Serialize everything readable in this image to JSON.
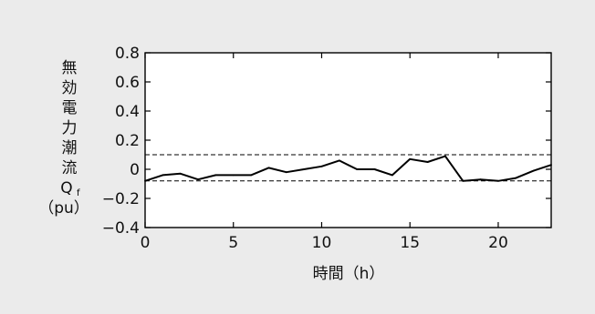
{
  "chart_data": {
    "type": "line",
    "ylabel_chars": [
      "無",
      "効",
      "電",
      "力",
      "潮",
      "流"
    ],
    "ylabel_symbol": "Q",
    "ylabel_subscript": "f",
    "ylabel_unit": "（pu）",
    "xlabel": "時間（h）",
    "xlim": [
      0,
      23
    ],
    "ylim": [
      -0.4,
      0.8
    ],
    "xticks": [
      0,
      5,
      10,
      15,
      20
    ],
    "xtick_labels": [
      "0",
      "5",
      "10",
      "15",
      "20"
    ],
    "yticks": [
      0.8,
      0.6,
      0.4,
      0.2,
      0,
      -0.2,
      -0.4
    ],
    "ytick_labels": [
      "0.8",
      "0.6",
      "0.4",
      "0.2",
      "0",
      "−0.2",
      "−0.4"
    ],
    "grid": false,
    "series": [
      {
        "x": [
          0,
          1,
          2,
          3,
          4,
          5,
          6,
          7,
          8,
          9,
          10,
          11,
          12,
          13,
          14,
          15,
          16,
          17,
          18,
          19,
          20,
          21,
          22,
          23
        ],
        "y": [
          -0.08,
          -0.04,
          -0.03,
          -0.07,
          -0.04,
          -0.04,
          -0.04,
          0.01,
          -0.02,
          0.0,
          0.02,
          0.06,
          0.0,
          0.0,
          -0.04,
          0.07,
          0.05,
          0.09,
          -0.08,
          -0.07,
          -0.08,
          -0.06,
          -0.01,
          0.03
        ],
        "color": "#000000"
      }
    ],
    "reference_lines": [
      {
        "y": 0.1,
        "style": "dashed"
      },
      {
        "y": -0.08,
        "style": "dashed"
      }
    ]
  }
}
